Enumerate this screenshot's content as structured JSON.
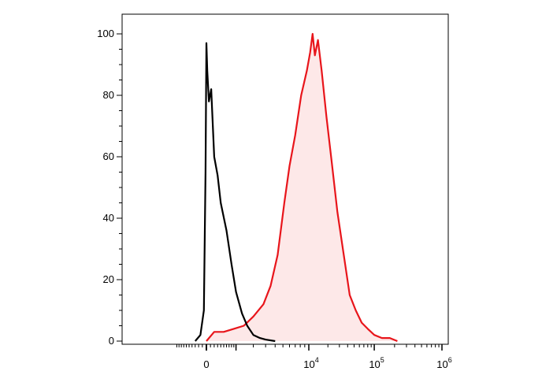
{
  "chart_data": {
    "type": "area",
    "title": "",
    "xlabel": "",
    "ylabel": "",
    "x_scale": "biexponential",
    "ylim": [
      0,
      100
    ],
    "y_ticks": [
      0,
      20,
      40,
      60,
      80,
      100
    ],
    "x_ticks": [
      {
        "value": 0,
        "base": "0",
        "exp": ""
      },
      {
        "value": 10000,
        "base": "10",
        "exp": "4"
      },
      {
        "value": 100000,
        "base": "10",
        "exp": "5"
      },
      {
        "value": 1000000,
        "base": "10",
        "exp": "6"
      }
    ],
    "grid": false,
    "legend": "none",
    "series": [
      {
        "color": "#000000",
        "filled": false,
        "x": [
          -300,
          -150,
          -60,
          -20,
          0,
          20,
          60,
          120,
          200,
          300,
          400,
          600,
          800,
          1000,
          1300,
          1600,
          2000,
          2500,
          3000,
          4000
        ],
        "y": [
          0,
          2,
          10,
          55,
          97,
          88,
          78,
          82,
          60,
          54,
          45,
          36,
          25,
          16,
          9,
          5,
          2,
          1,
          0.5,
          0
        ]
      },
      {
        "color": "#e8151b",
        "fill": "#fde8e8",
        "filled": true,
        "x": [
          0,
          200,
          500,
          900,
          1400,
          2000,
          2800,
          3500,
          4300,
          5200,
          6000,
          7000,
          8200,
          9500,
          10500,
          11500,
          12500,
          14000,
          16000,
          19000,
          23000,
          28000,
          35000,
          43000,
          53000,
          65000,
          80000,
          100000,
          130000,
          170000,
          220000
        ],
        "y": [
          0,
          3,
          3,
          4,
          5,
          8,
          12,
          18,
          28,
          45,
          57,
          67,
          80,
          88,
          94,
          100,
          93,
          98,
          88,
          73,
          58,
          42,
          28,
          15,
          10,
          6,
          4,
          2,
          1,
          1,
          0
        ]
      }
    ]
  }
}
